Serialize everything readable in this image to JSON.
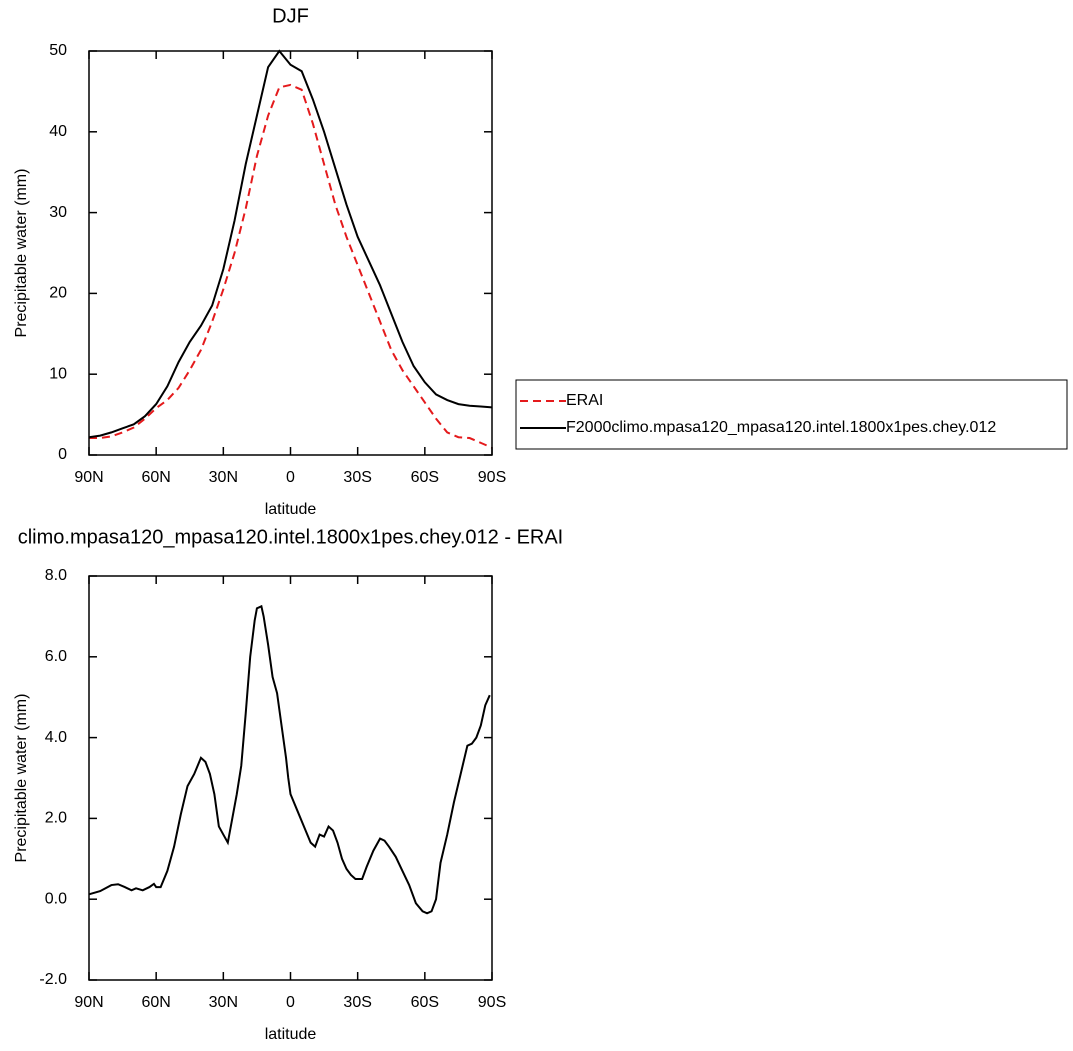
{
  "chart_data": [
    {
      "type": "line",
      "title": "DJF",
      "xlabel": "latitude",
      "ylabel": "Precipitable water (mm)",
      "x": [
        90,
        85,
        80,
        75,
        70,
        65,
        60,
        55,
        50,
        45,
        40,
        35,
        30,
        25,
        20,
        15,
        10,
        5,
        0,
        -5,
        -10,
        -15,
        -20,
        -25,
        -30,
        -35,
        -40,
        -45,
        -50,
        -55,
        -60,
        -65,
        -70,
        -75,
        -80,
        -85,
        -90
      ],
      "series": [
        {
          "name": "ERAI",
          "color": "#e41a1c",
          "style": "dashed",
          "values": [
            2.1,
            2.1,
            2.3,
            2.8,
            3.4,
            4.5,
            5.8,
            6.8,
            8.3,
            10.5,
            13,
            16.5,
            20.5,
            25,
            30.5,
            37,
            42,
            45.5,
            45.8,
            45.2,
            41,
            36,
            31,
            27,
            23.5,
            20,
            16.5,
            13,
            10.5,
            8.5,
            6.5,
            4.5,
            2.8,
            2.2,
            2.1,
            1.5,
            0.9
          ]
        },
        {
          "name": "F2000climo.mpasa120_mpasa120.intel.1800x1pes.chey.012",
          "color": "#000000",
          "style": "solid",
          "values": [
            2.2,
            2.4,
            2.8,
            3.3,
            3.8,
            4.8,
            6.3,
            8.5,
            11.5,
            14,
            16,
            18.5,
            23,
            29,
            36,
            42,
            48,
            50,
            48.3,
            47.5,
            44,
            40,
            35.5,
            31,
            27,
            24,
            21,
            17.5,
            14,
            11,
            9,
            7.5,
            6.8,
            6.3,
            6.1,
            6.0,
            5.9
          ]
        }
      ],
      "xlim": [
        90,
        -90
      ],
      "xticks": [
        {
          "value": 90,
          "label": "90N"
        },
        {
          "value": 60,
          "label": "60N"
        },
        {
          "value": 30,
          "label": "30N"
        },
        0,
        {
          "value": -30,
          "label": "30S"
        },
        {
          "value": -60,
          "label": "60S"
        },
        {
          "value": -90,
          "label": "90S"
        }
      ],
      "ylim": [
        0,
        50
      ],
      "yticks": [
        0,
        10,
        20,
        30,
        40,
        50
      ],
      "legend": "right"
    },
    {
      "type": "line",
      "title": "climo.mpasa120_mpasa120.intel.1800x1pes.chey.012 - ERAI",
      "xlabel": "latitude",
      "ylabel": "Precipitable water (mm)",
      "x": [
        90,
        85,
        80,
        77,
        74,
        71,
        69,
        66,
        63,
        61,
        60,
        58,
        55,
        52,
        49,
        46,
        43,
        40,
        38,
        36,
        34,
        32,
        30,
        28,
        26,
        24,
        22,
        20,
        18,
        16,
        15,
        13,
        12,
        10,
        8,
        6,
        4,
        2,
        1,
        0,
        -3,
        -6,
        -9,
        -11,
        -13,
        -15,
        -17,
        -19,
        -21,
        -23,
        -25,
        -27,
        -29,
        -32,
        -34,
        -37,
        -40,
        -42,
        -44,
        -47,
        -50,
        -53,
        -56,
        -59,
        -61,
        -63,
        -65,
        -67,
        -70,
        -73,
        -76,
        -79,
        -81,
        -83,
        -85,
        -87,
        -89
      ],
      "values": [
        0.12,
        0.2,
        0.35,
        0.37,
        0.3,
        0.22,
        0.27,
        0.22,
        0.3,
        0.38,
        0.3,
        0.3,
        0.7,
        1.3,
        2.1,
        2.8,
        3.1,
        3.5,
        3.4,
        3.1,
        2.6,
        1.8,
        1.6,
        1.4,
        2,
        2.6,
        3.3,
        4.6,
        6,
        6.9,
        7.2,
        7.25,
        7.0,
        6.3,
        5.5,
        5.1,
        4.3,
        3.5,
        3.0,
        2.6,
        2.2,
        1.8,
        1.4,
        1.3,
        1.6,
        1.55,
        1.8,
        1.7,
        1.4,
        1.0,
        0.75,
        0.6,
        0.5,
        0.5,
        0.8,
        1.2,
        1.5,
        1.45,
        1.3,
        1.05,
        0.7,
        0.35,
        -0.1,
        -0.3,
        -0.35,
        -0.3,
        0,
        0.9,
        1.6,
        2.4,
        3.1,
        3.8,
        3.85,
        4.0,
        4.3,
        4.8,
        5.05
      ],
      "color": "#000000",
      "xlim": [
        90,
        -90
      ],
      "xticks": [
        {
          "value": 90,
          "label": "90N"
        },
        {
          "value": 60,
          "label": "60N"
        },
        {
          "value": 30,
          "label": "30N"
        },
        0,
        {
          "value": -30,
          "label": "30S"
        },
        {
          "value": -60,
          "label": "60S"
        },
        {
          "value": -90,
          "label": "90S"
        }
      ],
      "ylim": [
        -2,
        8
      ],
      "yticks": [
        {
          "value": -2,
          "label": "-2.0"
        },
        {
          "value": 0,
          "label": "0.0"
        },
        {
          "value": 2,
          "label": "2.0"
        },
        {
          "value": 4,
          "label": "4.0"
        },
        {
          "value": 6,
          "label": "6.0"
        },
        {
          "value": 8,
          "label": "8.0"
        }
      ]
    }
  ]
}
